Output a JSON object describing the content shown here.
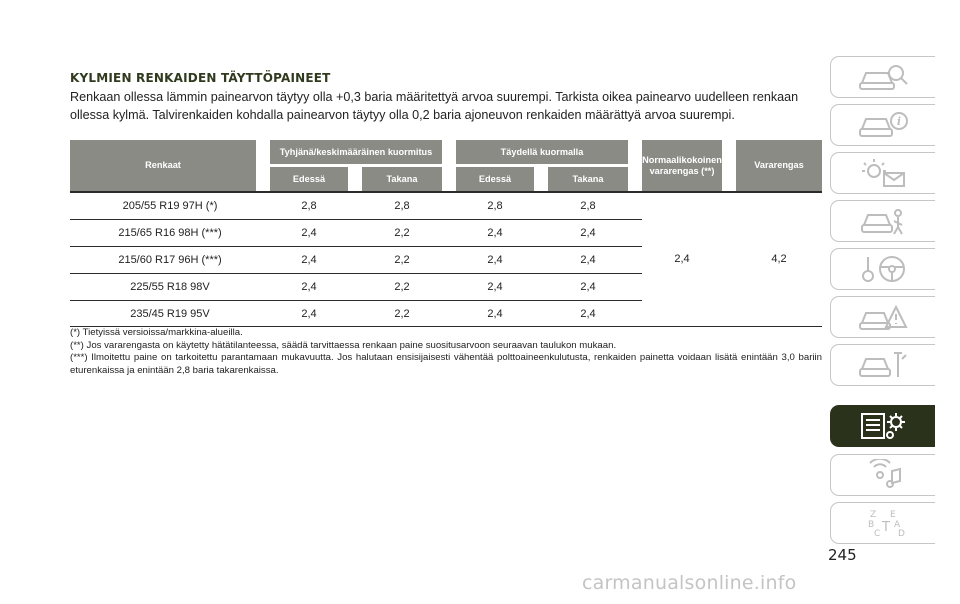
{
  "section": {
    "heading": "KYLMIEN RENKAIDEN TÄYTTÖPAINEET",
    "intro": "Renkaan ollessa lämmin painearvon täytyy olla +0,3 baria määritettyä arvoa suurempi. Tarkista oikea painearvo uudelleen renkaan ollessa kylmä. Talvirenkaiden kohdalla painearvon täytyy olla 0,2 baria ajoneuvon renkaiden määrättyä arvoa suurempi."
  },
  "table": {
    "headers": {
      "tyres": "Renkaat",
      "unladen": "Tyhjänä/keskimääräinen kuormitus",
      "laden": "Täydellä kuormalla",
      "front": "Edessä",
      "rear": "Takana",
      "normal_spare": "Normaalikokoinen vararengas (**)",
      "spare": "Vararengas"
    },
    "rows": [
      {
        "tyre": "205/55 R19 97H (*)",
        "unladen_front": "2,8",
        "unladen_rear": "2,8",
        "laden_front": "2,8",
        "laden_rear": "2,8"
      },
      {
        "tyre": "215/65 R16 98H (***)",
        "unladen_front": "2,4",
        "unladen_rear": "2,2",
        "laden_front": "2,4",
        "laden_rear": "2,4"
      },
      {
        "tyre": "215/60 R17 96H (***)",
        "unladen_front": "2,4",
        "unladen_rear": "2,2",
        "laden_front": "2,4",
        "laden_rear": "2,4"
      },
      {
        "tyre": "225/55 R18 98V",
        "unladen_front": "2,4",
        "unladen_rear": "2,2",
        "laden_front": "2,4",
        "laden_rear": "2,4"
      },
      {
        "tyre": "235/45 R19 95V",
        "unladen_front": "2,4",
        "unladen_rear": "2,2",
        "laden_front": "2,4",
        "laden_rear": "2,4"
      }
    ],
    "normal_spare_value": "2,4",
    "spare_value": "4,2"
  },
  "notes": [
    "(*) Tietyissä versioissa/markkina-alueilla.",
    "(**) Jos vararengasta on käytetty hätätilanteessa, säädä tarvittaessa renkaan paine suositusarvoon seuraavan taulukon mukaan.",
    "(***) Ilmoitettu paine on tarkoitettu parantamaan mukavuutta. Jos halutaan ensisijaisesti vähentää polttoaineenkulutusta, renkaiden painetta voidaan lisätä enintään 3,0 bariin eturenkaissa ja enintään 2,8 baria takarenkaissa."
  ],
  "sidebar": {
    "tabs": [
      {
        "name": "dashboard-car-icon",
        "active": false
      },
      {
        "name": "car-info-icon",
        "active": false
      },
      {
        "name": "warning-lights-icon",
        "active": false
      },
      {
        "name": "safety-airbag-icon",
        "active": false
      },
      {
        "name": "starting-driving-icon",
        "active": false
      },
      {
        "name": "emergency-icon",
        "active": false
      },
      {
        "name": "service-maintenance-icon",
        "active": false
      },
      {
        "name": "technical-data-icon",
        "active": true
      },
      {
        "name": "multimedia-icon",
        "active": false
      },
      {
        "name": "index-icon",
        "active": false
      }
    ],
    "index_letters": [
      "Z",
      "E",
      "B",
      "A",
      "C",
      "D",
      "T"
    ]
  },
  "page_number": "245",
  "watermark": "carmanualsonline.info",
  "colors": {
    "header_bg": "#8a8b85",
    "active_tab": "#2b321c",
    "heading": "#2f3a1f"
  }
}
